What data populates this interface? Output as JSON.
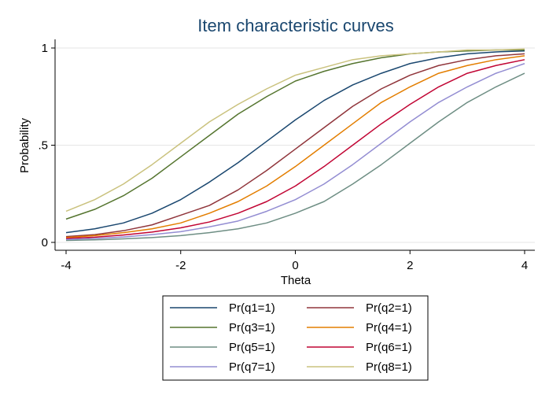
{
  "chart_data": {
    "type": "line",
    "title": "Item characteristic curves",
    "xlabel": "Theta",
    "ylabel": "Probability",
    "xlim": [
      -4,
      4
    ],
    "ylim": [
      0,
      1
    ],
    "xticks": [
      -4,
      -2,
      0,
      2,
      4
    ],
    "xtick_labels": [
      "-4",
      "-2",
      "0",
      "2",
      "4"
    ],
    "yticks": [
      0,
      0.5,
      1
    ],
    "ytick_labels": [
      "0",
      ".5",
      "1"
    ],
    "grid": true,
    "legend_position": "bottom",
    "x": [
      -4,
      -3.5,
      -3,
      -2.5,
      -2,
      -1.5,
      -1,
      -0.5,
      0,
      0.5,
      1,
      1.5,
      2,
      2.5,
      3,
      3.5,
      4
    ],
    "series": [
      {
        "name": "Pr(q1=1)",
        "color": "#1a476f",
        "values": [
          0.05,
          0.07,
          0.1,
          0.15,
          0.22,
          0.31,
          0.41,
          0.52,
          0.63,
          0.73,
          0.81,
          0.87,
          0.92,
          0.95,
          0.97,
          0.98,
          0.985
        ]
      },
      {
        "name": "Pr(q2=1)",
        "color": "#90353b",
        "values": [
          0.03,
          0.04,
          0.06,
          0.09,
          0.14,
          0.19,
          0.27,
          0.37,
          0.48,
          0.59,
          0.7,
          0.79,
          0.86,
          0.91,
          0.94,
          0.96,
          0.97
        ]
      },
      {
        "name": "Pr(q3=1)",
        "color": "#55752f",
        "values": [
          0.12,
          0.17,
          0.24,
          0.33,
          0.44,
          0.55,
          0.66,
          0.75,
          0.83,
          0.88,
          0.92,
          0.95,
          0.97,
          0.98,
          0.985,
          0.99,
          0.99
        ]
      },
      {
        "name": "Pr(q4=1)",
        "color": "#e37e00",
        "values": [
          0.025,
          0.035,
          0.05,
          0.07,
          0.1,
          0.15,
          0.21,
          0.29,
          0.39,
          0.5,
          0.61,
          0.72,
          0.8,
          0.87,
          0.91,
          0.94,
          0.96
        ]
      },
      {
        "name": "Pr(q5=1)",
        "color": "#6e8e84",
        "values": [
          0.01,
          0.013,
          0.018,
          0.025,
          0.035,
          0.05,
          0.07,
          0.1,
          0.15,
          0.21,
          0.3,
          0.4,
          0.51,
          0.62,
          0.72,
          0.8,
          0.87
        ]
      },
      {
        "name": "Pr(q6=1)",
        "color": "#c10534",
        "values": [
          0.02,
          0.027,
          0.038,
          0.053,
          0.075,
          0.105,
          0.15,
          0.21,
          0.29,
          0.39,
          0.5,
          0.61,
          0.71,
          0.8,
          0.87,
          0.91,
          0.94
        ]
      },
      {
        "name": "Pr(q7=1)",
        "color": "#938dd2",
        "values": [
          0.015,
          0.02,
          0.028,
          0.04,
          0.055,
          0.08,
          0.11,
          0.16,
          0.22,
          0.3,
          0.4,
          0.51,
          0.62,
          0.72,
          0.8,
          0.87,
          0.92
        ]
      },
      {
        "name": "Pr(q8=1)",
        "color": "#cac27e",
        "values": [
          0.16,
          0.22,
          0.3,
          0.4,
          0.51,
          0.62,
          0.71,
          0.79,
          0.86,
          0.9,
          0.94,
          0.96,
          0.97,
          0.98,
          0.99,
          0.99,
          0.995
        ]
      }
    ]
  }
}
